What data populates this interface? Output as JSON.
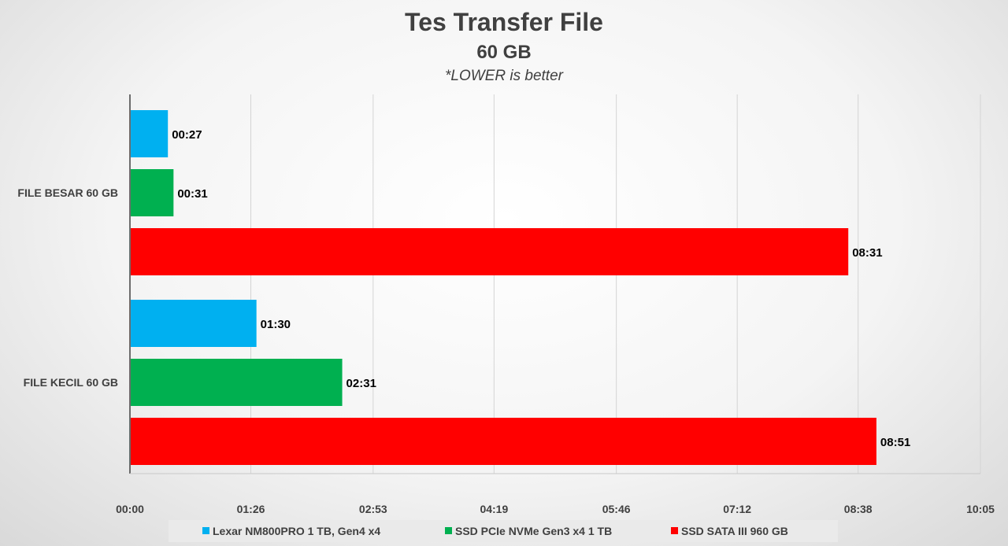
{
  "chart_data": {
    "type": "bar",
    "orientation": "horizontal",
    "title": "Tes Transfer File",
    "subtitle": "60 GB",
    "note": "*LOWER is better",
    "categories": [
      "FILE BESAR 60 GB",
      "FILE KECIL 60 GB"
    ],
    "series": [
      {
        "name": "Lexar NM800PRO 1 TB, Gen4 x4",
        "color": "#00b0f0",
        "values": [
          27,
          90
        ],
        "labels": [
          "00:27",
          "01:30"
        ]
      },
      {
        "name": "SSD PCIe NVMe Gen3 x4 1 TB",
        "color": "#00b050",
        "values": [
          31,
          151
        ],
        "labels": [
          "00:31",
          "02:31"
        ]
      },
      {
        "name": "SSD SATA III 960 GB",
        "color": "#ff0000",
        "values": [
          511,
          531
        ],
        "labels": [
          "08:31",
          "08:51"
        ]
      }
    ],
    "x_ticks": [
      0,
      86,
      173,
      259,
      346,
      432,
      518,
      605
    ],
    "x_tick_labels": [
      "00:00",
      "01:26",
      "02:53",
      "04:19",
      "05:46",
      "07:12",
      "08:38",
      "10:05"
    ],
    "xlim": [
      0,
      605
    ],
    "x_unit": "seconds",
    "grid": true,
    "legend_position": "bottom"
  }
}
